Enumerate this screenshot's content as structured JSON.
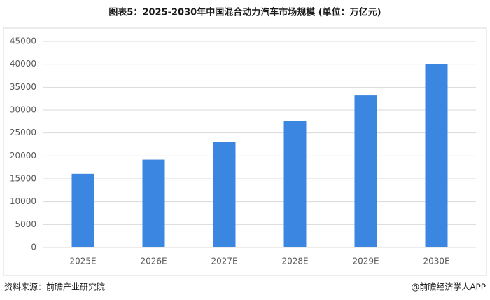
{
  "chart_data": {
    "type": "bar",
    "title": "图表5：2025-2030年中国混合动力汽车市场规模 (单位：万亿元)",
    "categories": [
      "2025E",
      "2026E",
      "2027E",
      "2028E",
      "2029E",
      "2030E"
    ],
    "values": [
      16100,
      19200,
      23100,
      27700,
      33200,
      40000
    ],
    "color": "#3a86e0",
    "ylim": [
      0,
      45000
    ],
    "yticks": [
      0,
      5000,
      10000,
      15000,
      20000,
      25000,
      30000,
      35000,
      40000,
      45000
    ],
    "grid": true,
    "source": "资料来源：前瞻产业研究院",
    "credit": "@前瞻经济学人APP"
  }
}
